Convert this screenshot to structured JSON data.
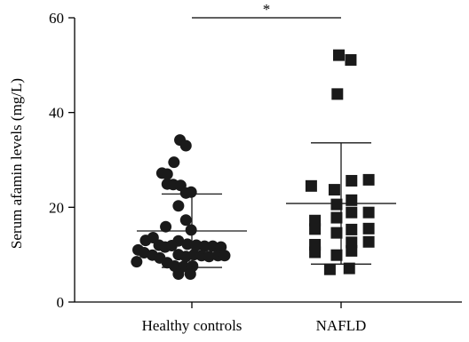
{
  "chart_data": {
    "type": "scatter",
    "ylabel": "Serum afamin levels (mg/L)",
    "xlabel": "",
    "categories": [
      "Healthy controls",
      "NAFLD"
    ],
    "ylim": [
      0,
      60
    ],
    "yticks": [
      0,
      20,
      40,
      60
    ],
    "yticks_labels": [
      "0",
      "20",
      "40",
      "60"
    ],
    "grid": false,
    "significance": {
      "label": "*",
      "between": [
        "Healthy controls",
        "NAFLD"
      ],
      "y": 60
    },
    "series": [
      {
        "category": "Healthy controls",
        "marker": "circle",
        "mean": 15.0,
        "sd_upper": 22.8,
        "sd_lower": 7.3,
        "points": [
          {
            "x": -0.16,
            "y": 34.2
          },
          {
            "x": -0.08,
            "y": 33.0
          },
          {
            "x": -0.24,
            "y": 29.5
          },
          {
            "x": -0.4,
            "y": 27.2
          },
          {
            "x": -0.33,
            "y": 27.0
          },
          {
            "x": -0.33,
            "y": 24.9
          },
          {
            "x": -0.25,
            "y": 24.8
          },
          {
            "x": -0.15,
            "y": 24.6
          },
          {
            "x": -0.08,
            "y": 23.0
          },
          {
            "x": -0.01,
            "y": 23.2
          },
          {
            "x": -0.18,
            "y": 20.3
          },
          {
            "x": -0.08,
            "y": 17.3
          },
          {
            "x": -0.35,
            "y": 15.9
          },
          {
            "x": -0.01,
            "y": 15.2
          },
          {
            "x": -0.62,
            "y": 13.0
          },
          {
            "x": -0.52,
            "y": 13.6
          },
          {
            "x": -0.18,
            "y": 12.9
          },
          {
            "x": -0.44,
            "y": 12.0
          },
          {
            "x": -0.36,
            "y": 11.6
          },
          {
            "x": -0.27,
            "y": 11.9
          },
          {
            "x": -0.06,
            "y": 12.2
          },
          {
            "x": 0.06,
            "y": 12.0
          },
          {
            "x": 0.17,
            "y": 11.8
          },
          {
            "x": 0.28,
            "y": 11.8
          },
          {
            "x": 0.39,
            "y": 11.6
          },
          {
            "x": -0.72,
            "y": 11.0
          },
          {
            "x": -0.64,
            "y": 10.4
          },
          {
            "x": -0.18,
            "y": 10.0
          },
          {
            "x": -0.08,
            "y": 9.6
          },
          {
            "x": 0.03,
            "y": 10.0
          },
          {
            "x": 0.13,
            "y": 9.8
          },
          {
            "x": 0.23,
            "y": 9.6
          },
          {
            "x": 0.35,
            "y": 9.8
          },
          {
            "x": 0.44,
            "y": 9.8
          },
          {
            "x": -0.53,
            "y": 9.9
          },
          {
            "x": -0.43,
            "y": 9.3
          },
          {
            "x": -0.74,
            "y": 8.5
          },
          {
            "x": -0.33,
            "y": 8.3
          },
          {
            "x": -0.23,
            "y": 7.6
          },
          {
            "x": -0.11,
            "y": 7.5
          },
          {
            "x": 0.01,
            "y": 7.6
          },
          {
            "x": -0.18,
            "y": 5.9
          },
          {
            "x": -0.02,
            "y": 5.9
          }
        ]
      },
      {
        "category": "NAFLD",
        "marker": "square",
        "mean": 20.8,
        "sd_upper": 33.6,
        "sd_lower": 8.0,
        "points": [
          {
            "x": -0.03,
            "y": 52.1
          },
          {
            "x": 0.13,
            "y": 51.1
          },
          {
            "x": -0.05,
            "y": 43.9
          },
          {
            "x": 0.14,
            "y": 25.6
          },
          {
            "x": 0.37,
            "y": 25.8
          },
          {
            "x": -0.4,
            "y": 24.5
          },
          {
            "x": -0.09,
            "y": 23.7
          },
          {
            "x": 0.14,
            "y": 21.5
          },
          {
            "x": -0.06,
            "y": 20.6
          },
          {
            "x": 0.14,
            "y": 18.9
          },
          {
            "x": 0.37,
            "y": 18.9
          },
          {
            "x": -0.35,
            "y": 17.2
          },
          {
            "x": -0.06,
            "y": 17.8
          },
          {
            "x": -0.35,
            "y": 15.4
          },
          {
            "x": 0.14,
            "y": 15.3
          },
          {
            "x": 0.37,
            "y": 15.5
          },
          {
            "x": -0.06,
            "y": 14.6
          },
          {
            "x": -0.35,
            "y": 12.1
          },
          {
            "x": 0.14,
            "y": 12.6
          },
          {
            "x": 0.37,
            "y": 12.7
          },
          {
            "x": -0.35,
            "y": 10.5
          },
          {
            "x": -0.06,
            "y": 9.9
          },
          {
            "x": 0.14,
            "y": 10.8
          },
          {
            "x": -0.15,
            "y": 6.9
          },
          {
            "x": 0.11,
            "y": 7.1
          }
        ]
      }
    ]
  }
}
